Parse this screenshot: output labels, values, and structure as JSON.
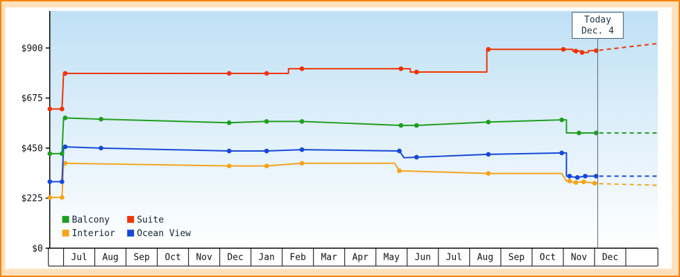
{
  "colors": {
    "page_bg": "#ffe2bd",
    "page_border": "#ff7f00",
    "panel_bg": "#ffffff",
    "plot_gradient_top": "#bfe0f5",
    "plot_gradient_bottom": "#ffffff",
    "axis": "#000000",
    "axis_text": "#111111",
    "today_line": "#556677",
    "today_box_border": "#445566",
    "today_box_fill": "#ffffff",
    "today_text": "#223344",
    "legend_text": "#112233"
  },
  "chart_data": {
    "type": "line",
    "title": "",
    "xlabel": "",
    "ylabel": "",
    "ylim": [
      0,
      900
    ],
    "grid": false,
    "legend_position": "bottom-left-inside",
    "y_ticks": [
      {
        "label": "$0",
        "value": 0
      },
      {
        "label": "$225",
        "value": 225
      },
      {
        "label": "$450",
        "value": 450
      },
      {
        "label": "$675",
        "value": 675
      },
      {
        "label": "$900",
        "value": 900
      }
    ],
    "x_months": [
      "Jul",
      "Aug",
      "Sep",
      "Oct",
      "Nov",
      "Dec",
      "Jan",
      "Feb",
      "Mar",
      "Apr",
      "May",
      "Jun",
      "Jul",
      "Aug",
      "Sep",
      "Oct",
      "Nov",
      "Dec"
    ],
    "today": {
      "title": "Today",
      "date": "Dec. 4",
      "month_index": 17.1
    },
    "series": [
      {
        "name": "Interior",
        "color": "#f5a31b",
        "points": [
          [
            -0.44,
            228
          ],
          [
            -0.05,
            228
          ],
          [
            0,
            382
          ],
          [
            5.3,
            370
          ],
          [
            6.5,
            370
          ],
          [
            7.63,
            382
          ],
          [
            10.6,
            382
          ],
          [
            10.75,
            348
          ],
          [
            13.6,
            336
          ],
          [
            15.95,
            336
          ],
          [
            16.1,
            302
          ],
          [
            16.35,
            295
          ],
          [
            16.6,
            298
          ],
          [
            17.1,
            292
          ]
        ],
        "markers": [
          [
            -0.44,
            228
          ],
          [
            -0.05,
            228
          ],
          [
            0.05,
            382
          ],
          [
            5.3,
            370
          ],
          [
            6.5,
            370
          ],
          [
            7.63,
            382
          ],
          [
            10.75,
            348
          ],
          [
            13.6,
            336
          ],
          [
            16.2,
            302
          ],
          [
            16.4,
            295
          ],
          [
            16.65,
            298
          ],
          [
            17.0,
            292
          ]
        ],
        "projection": [
          [
            17.15,
            290
          ],
          [
            19.0,
            283
          ]
        ]
      },
      {
        "name": "Ocean View",
        "color": "#1648d8",
        "points": [
          [
            -0.44,
            299
          ],
          [
            -0.05,
            299
          ],
          [
            0,
            456
          ],
          [
            1.2,
            450
          ],
          [
            5.3,
            437
          ],
          [
            6.5,
            437
          ],
          [
            7.63,
            443
          ],
          [
            10.75,
            437
          ],
          [
            10.9,
            407
          ],
          [
            11.3,
            409
          ],
          [
            13.6,
            422
          ],
          [
            15.95,
            428
          ],
          [
            16.1,
            428
          ],
          [
            16.1,
            324
          ],
          [
            16.45,
            318
          ],
          [
            16.7,
            324
          ],
          [
            17.1,
            324
          ]
        ],
        "markers": [
          [
            -0.44,
            299
          ],
          [
            -0.05,
            299
          ],
          [
            0.05,
            456
          ],
          [
            1.2,
            450
          ],
          [
            5.3,
            437
          ],
          [
            6.5,
            437
          ],
          [
            7.63,
            443
          ],
          [
            10.75,
            437
          ],
          [
            11.3,
            409
          ],
          [
            13.6,
            422
          ],
          [
            15.95,
            428
          ],
          [
            16.2,
            324
          ],
          [
            16.45,
            318
          ],
          [
            16.7,
            324
          ],
          [
            17.05,
            324
          ]
        ],
        "projection": [
          [
            17.15,
            324
          ],
          [
            19.0,
            324
          ]
        ]
      },
      {
        "name": "Balcony",
        "color": "#1e9e1e",
        "points": [
          [
            -0.44,
            425
          ],
          [
            -0.05,
            425
          ],
          [
            0,
            586
          ],
          [
            1.2,
            580
          ],
          [
            5.3,
            564
          ],
          [
            6.5,
            570
          ],
          [
            7.63,
            570
          ],
          [
            10.8,
            552
          ],
          [
            11.3,
            552
          ],
          [
            13.6,
            567
          ],
          [
            15.95,
            577
          ],
          [
            16.1,
            577
          ],
          [
            16.1,
            518
          ],
          [
            17.1,
            518
          ]
        ],
        "markers": [
          [
            -0.44,
            425
          ],
          [
            -0.05,
            425
          ],
          [
            0.05,
            586
          ],
          [
            1.2,
            580
          ],
          [
            5.3,
            564
          ],
          [
            6.5,
            570
          ],
          [
            7.63,
            570
          ],
          [
            10.8,
            552
          ],
          [
            11.3,
            552
          ],
          [
            13.6,
            567
          ],
          [
            15.95,
            577
          ],
          [
            16.5,
            518
          ],
          [
            17.05,
            518
          ]
        ],
        "projection": [
          [
            17.15,
            518
          ],
          [
            19.0,
            518
          ]
        ]
      },
      {
        "name": "Suite",
        "color": "#ee3300",
        "points": [
          [
            -0.44,
            626
          ],
          [
            -0.05,
            626
          ],
          [
            0,
            786
          ],
          [
            5.3,
            786
          ],
          [
            6.5,
            786
          ],
          [
            7.2,
            786
          ],
          [
            7.2,
            807
          ],
          [
            7.63,
            807
          ],
          [
            10.8,
            807
          ],
          [
            11.1,
            807
          ],
          [
            11.1,
            792
          ],
          [
            11.3,
            792
          ],
          [
            13.55,
            792
          ],
          [
            13.55,
            894
          ],
          [
            16.0,
            894
          ],
          [
            16.3,
            894
          ],
          [
            16.3,
            886
          ],
          [
            16.55,
            886
          ],
          [
            16.55,
            880
          ],
          [
            16.8,
            880
          ],
          [
            16.8,
            888
          ],
          [
            17.1,
            888
          ]
        ],
        "markers": [
          [
            -0.44,
            626
          ],
          [
            -0.05,
            626
          ],
          [
            0.05,
            786
          ],
          [
            5.3,
            786
          ],
          [
            6.5,
            786
          ],
          [
            7.63,
            807
          ],
          [
            10.8,
            807
          ],
          [
            11.3,
            792
          ],
          [
            13.6,
            894
          ],
          [
            16.0,
            894
          ],
          [
            16.4,
            886
          ],
          [
            16.6,
            880
          ],
          [
            17.05,
            888
          ]
        ],
        "projection": [
          [
            17.15,
            890
          ],
          [
            19.0,
            920
          ]
        ]
      }
    ],
    "legend": [
      {
        "label": "Balcony",
        "color": "#1e9e1e",
        "row": 0,
        "col": 0
      },
      {
        "label": "Suite",
        "color": "#ee3300",
        "row": 0,
        "col": 1
      },
      {
        "label": "Interior",
        "color": "#f5a31b",
        "row": 1,
        "col": 0
      },
      {
        "label": "Ocean View",
        "color": "#1648d8",
        "row": 1,
        "col": 1
      }
    ]
  }
}
